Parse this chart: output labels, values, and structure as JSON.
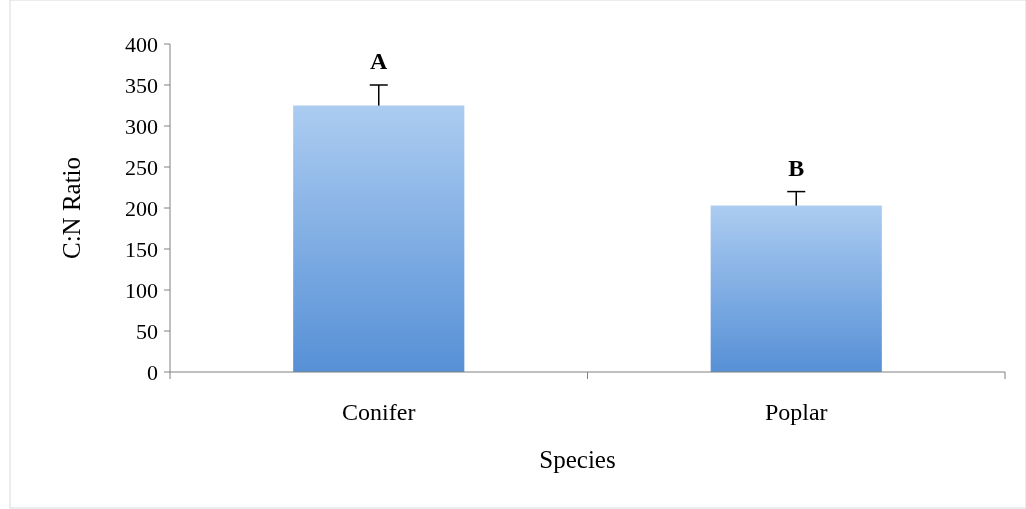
{
  "chart_data": {
    "type": "bar",
    "xlabel": "Species",
    "ylabel": "C:N Ratio",
    "categories": [
      "Conifer",
      "Poplar"
    ],
    "values": [
      325,
      203
    ],
    "errors": [
      25,
      17
    ],
    "color": "#7fb0ea",
    "ylim": [
      0,
      400
    ],
    "yticks": [
      0,
      50,
      100,
      150,
      200,
      250,
      300,
      350,
      400
    ],
    "annotations": [
      "A",
      "B"
    ]
  }
}
